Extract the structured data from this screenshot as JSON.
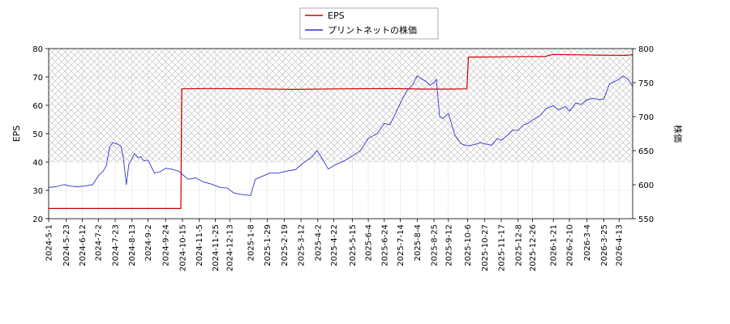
{
  "chart_data": {
    "type": "line",
    "title": "",
    "legend": {
      "placement": "top-center",
      "entries": [
        {
          "name": "EPS",
          "color": "#cc0000"
        },
        {
          "name": "プリントネットの株価",
          "color": "#3333cc"
        }
      ]
    },
    "xlabel": "",
    "ylabel_left": "EPS",
    "ylabel_right": "株価",
    "ylim_left": [
      20,
      80
    ],
    "ylim_right": [
      550,
      800
    ],
    "yticks_left": [
      20,
      30,
      40,
      50,
      60,
      70,
      80
    ],
    "yticks_right": [
      550,
      600,
      650,
      700,
      750,
      800
    ],
    "xlim": [
      "2024-05-01",
      "2026-04-30"
    ],
    "xtick_labels": [
      "2024-5-1",
      "2024-5-23",
      "2024-6-12",
      "2024-7-2",
      "2024-7-23",
      "2024-8-13",
      "2024-9-2",
      "2024-9-24",
      "2024-10-15",
      "2024-11-5",
      "2024-11-25",
      "2024-12-13",
      "2025-1-8",
      "2025-1-29",
      "2025-2-19",
      "2025-3-12",
      "2025-4-2",
      "2025-4-22",
      "2025-5-15",
      "2025-6-4",
      "2025-6-24",
      "2025-7-14",
      "2025-8-4",
      "2025-8-25",
      "2025-9-12",
      "2025-10-6",
      "2025-10-27",
      "2025-11-17",
      "2025-12-8",
      "2025-12-26",
      "2026-1-21",
      "2026-2-10",
      "2026-3-4",
      "2026-3-25",
      "2026-4-13"
    ],
    "xtick_dates": [
      "2024-05-01",
      "2024-05-23",
      "2024-06-12",
      "2024-07-02",
      "2024-07-23",
      "2024-08-13",
      "2024-09-02",
      "2024-09-24",
      "2024-10-15",
      "2024-11-05",
      "2024-11-25",
      "2024-12-13",
      "2025-01-08",
      "2025-01-29",
      "2025-02-19",
      "2025-03-12",
      "2025-04-02",
      "2025-04-22",
      "2025-05-15",
      "2025-06-04",
      "2025-06-24",
      "2025-07-14",
      "2025-08-04",
      "2025-08-25",
      "2025-09-12",
      "2025-10-06",
      "2025-10-27",
      "2025-11-17",
      "2025-12-08",
      "2025-12-26",
      "2026-01-21",
      "2026-02-10",
      "2026-03-04",
      "2026-03-25",
      "2026-04-13"
    ],
    "grid": true,
    "hatched_band_left": [
      40,
      80
    ],
    "series": [
      {
        "name": "EPS",
        "axis": "left",
        "color": "#cc0000",
        "x": [
          "2024-05-01",
          "2024-10-13",
          "2024-10-14",
          "2024-11-15",
          "2025-01-15",
          "2025-03-01",
          "2025-05-01",
          "2025-07-01",
          "2025-08-15",
          "2025-09-15",
          "2025-10-05",
          "2025-10-07",
          "2025-11-15",
          "2025-12-15",
          "2026-01-10",
          "2026-01-20",
          "2026-02-20",
          "2026-03-20",
          "2026-04-20",
          "2026-04-30"
        ],
        "values": [
          23.6,
          23.6,
          65.8,
          65.9,
          65.8,
          65.6,
          65.8,
          65.9,
          65.7,
          65.7,
          65.8,
          77.0,
          77.1,
          77.2,
          77.2,
          77.9,
          77.8,
          77.7,
          77.6,
          77.8
        ]
      },
      {
        "name": "プリントネットの株価",
        "axis": "right",
        "color": "#3333cc",
        "x": [
          "2024-05-01",
          "2024-05-10",
          "2024-05-20",
          "2024-05-28",
          "2024-06-05",
          "2024-06-15",
          "2024-06-25",
          "2024-07-02",
          "2024-07-08",
          "2024-07-12",
          "2024-07-16",
          "2024-07-20",
          "2024-07-25",
          "2024-07-30",
          "2024-08-02",
          "2024-08-06",
          "2024-08-09",
          "2024-08-12",
          "2024-08-16",
          "2024-08-20",
          "2024-08-24",
          "2024-08-28",
          "2024-09-02",
          "2024-09-10",
          "2024-09-17",
          "2024-09-24",
          "2024-10-01",
          "2024-10-10",
          "2024-10-15",
          "2024-10-22",
          "2024-11-01",
          "2024-11-10",
          "2024-11-20",
          "2024-12-01",
          "2024-12-10",
          "2024-12-18",
          "2024-12-26",
          "2025-01-08",
          "2025-01-14",
          "2025-01-22",
          "2025-02-01",
          "2025-02-12",
          "2025-02-22",
          "2025-03-05",
          "2025-03-15",
          "2025-03-25",
          "2025-04-01",
          "2025-04-05",
          "2025-04-10",
          "2025-04-15",
          "2025-04-25",
          "2025-05-05",
          "2025-05-15",
          "2025-05-25",
          "2025-06-04",
          "2025-06-15",
          "2025-06-24",
          "2025-07-01",
          "2025-07-08",
          "2025-07-14",
          "2025-07-22",
          "2025-07-30",
          "2025-08-04",
          "2025-08-10",
          "2025-08-15",
          "2025-08-20",
          "2025-08-25",
          "2025-08-28",
          "2025-09-01",
          "2025-09-05",
          "2025-09-12",
          "2025-09-20",
          "2025-09-28",
          "2025-10-06",
          "2025-10-15",
          "2025-10-22",
          "2025-10-27",
          "2025-11-05",
          "2025-11-12",
          "2025-11-17",
          "2025-11-25",
          "2025-12-01",
          "2025-12-08",
          "2025-12-15",
          "2025-12-20",
          "2025-12-26",
          "2026-01-05",
          "2026-01-12",
          "2026-01-21",
          "2026-01-28",
          "2026-02-05",
          "2026-02-10",
          "2026-02-18",
          "2026-02-25",
          "2026-03-04",
          "2026-03-12",
          "2026-03-18",
          "2026-03-25",
          "2026-04-01",
          "2026-04-08",
          "2026-04-13",
          "2026-04-18",
          "2026-04-24",
          "2026-04-30"
        ],
        "values": [
          596,
          597,
          600,
          598,
          597,
          598,
          600,
          613,
          620,
          628,
          655,
          662,
          660,
          657,
          641,
          600,
          630,
          636,
          646,
          640,
          641,
          635,
          636,
          617,
          619,
          624,
          623,
          620,
          615,
          608,
          610,
          604,
          601,
          596,
          595,
          588,
          586,
          584,
          608,
          612,
          617,
          617,
          620,
          622,
          632,
          640,
          650,
          643,
          633,
          623,
          630,
          635,
          642,
          650,
          668,
          675,
          690,
          688,
          705,
          720,
          738,
          748,
          760,
          755,
          752,
          746,
          750,
          755,
          700,
          697,
          705,
          673,
          660,
          657,
          659,
          662,
          660,
          658,
          668,
          665,
          673,
          680,
          680,
          688,
          690,
          695,
          702,
          712,
          716,
          710,
          715,
          708,
          720,
          718,
          725,
          727,
          725,
          726,
          748,
          752,
          755,
          760,
          755,
          745
        ]
      }
    ]
  }
}
